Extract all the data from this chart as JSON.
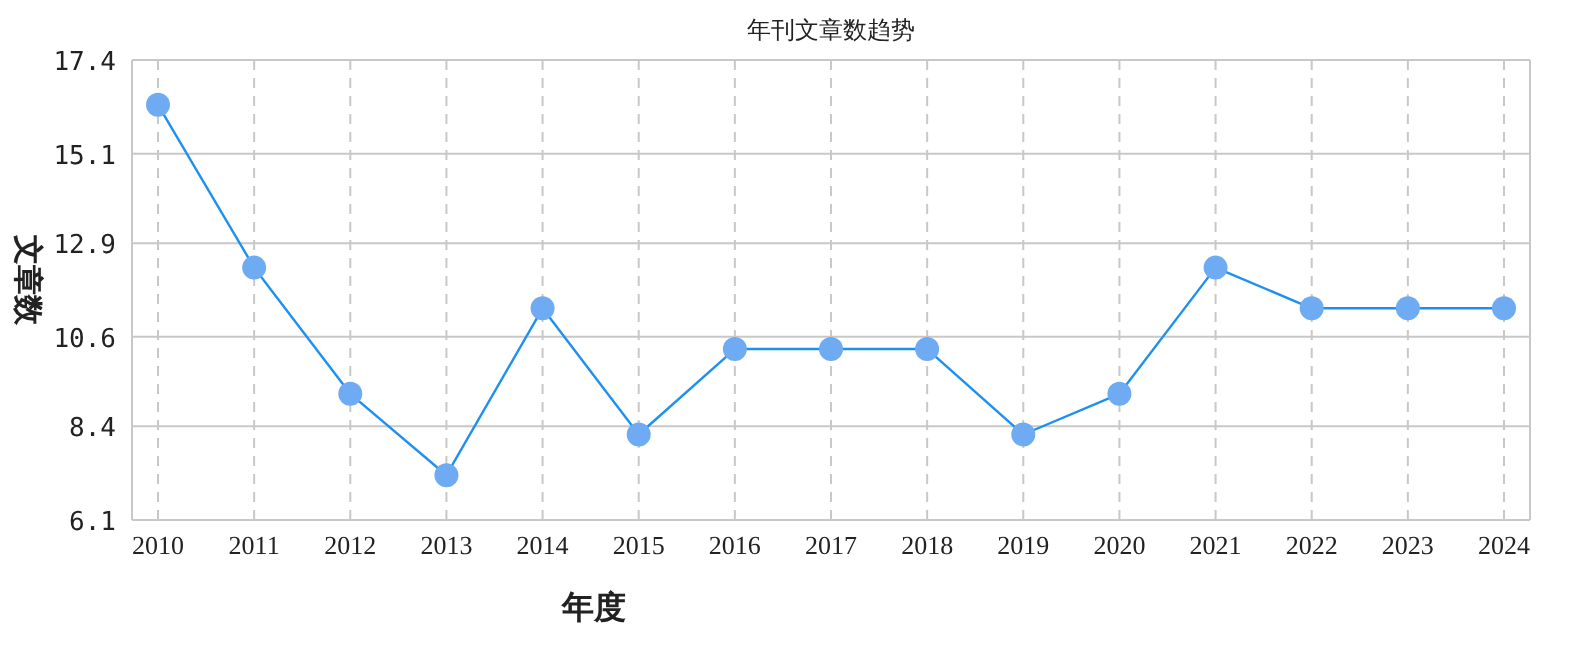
{
  "chart_data": {
    "type": "line",
    "title": "年刊文章数趋势",
    "xlabel": "年度",
    "ylabel": "文章数",
    "categories": [
      "2010",
      "2011",
      "2012",
      "2013",
      "2014",
      "2015",
      "2016",
      "2017",
      "2018",
      "2019",
      "2020",
      "2021",
      "2022",
      "2023",
      "2024"
    ],
    "series": [
      {
        "color": "#1e90f0",
        "values": [
          16.3,
          12.3,
          9.2,
          7.2,
          11.3,
          8.2,
          10.3,
          10.3,
          10.3,
          8.2,
          9.2,
          12.3,
          11.3,
          11.3,
          11.3
        ]
      }
    ],
    "ylim": [
      6.1,
      17.4
    ],
    "yticks": [
      6.1,
      8.4,
      10.6,
      12.9,
      15.1,
      17.4
    ],
    "grid": true,
    "marker": "circle",
    "line_style": "solid"
  }
}
